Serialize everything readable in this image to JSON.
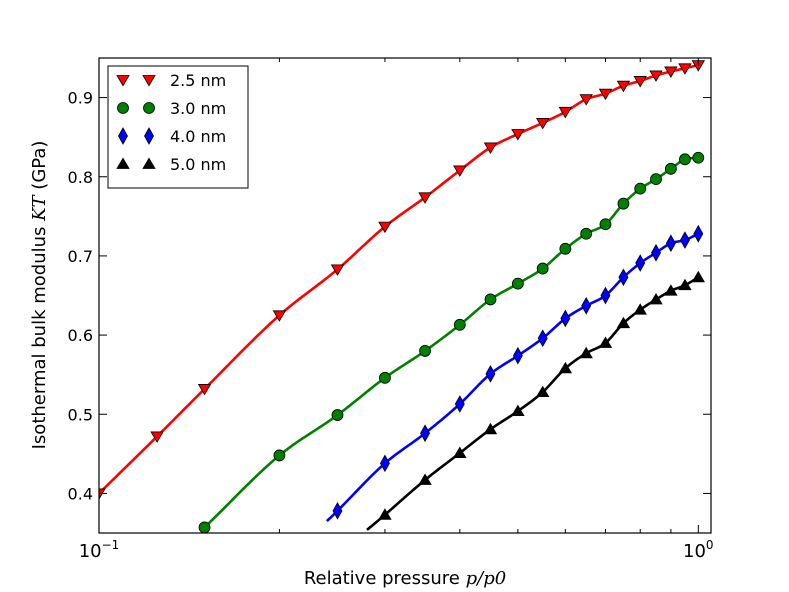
{
  "chart_data": {
    "type": "line",
    "xscale": "log",
    "xlim": [
      0.1,
      1.05
    ],
    "ylim": [
      0.35,
      0.95
    ],
    "xlabel": "Relative pressure",
    "xlabel_math": "p/p0",
    "ylabel": "Isothermal bulk modulus",
    "ylabel_math": "KT",
    "ylabel_unit": "(GPa)",
    "x_ticks": [
      {
        "base": "10",
        "exp": "−1",
        "value": 0.1
      },
      {
        "base": "10",
        "exp": "0",
        "value": 1.0
      }
    ],
    "y_ticks": [
      {
        "label": "0.4",
        "value": 0.4
      },
      {
        "label": "0.5",
        "value": 0.5
      },
      {
        "label": "0.6",
        "value": 0.6
      },
      {
        "label": "0.7",
        "value": 0.7
      },
      {
        "label": "0.8",
        "value": 0.8
      },
      {
        "label": "0.9",
        "value": 0.9
      }
    ],
    "legend_position": "top-left",
    "series": [
      {
        "name": "2.5 nm",
        "color": "#ff0000",
        "marker": "triangle-down",
        "points": [
          [
            0.1,
            0.4
          ],
          [
            0.125,
            0.472
          ],
          [
            0.15,
            0.532
          ],
          [
            0.2,
            0.625
          ],
          [
            0.25,
            0.683
          ],
          [
            0.3,
            0.737
          ],
          [
            0.35,
            0.774
          ],
          [
            0.4,
            0.808
          ],
          [
            0.45,
            0.837
          ],
          [
            0.5,
            0.854
          ],
          [
            0.55,
            0.868
          ],
          [
            0.6,
            0.882
          ],
          [
            0.65,
            0.898
          ],
          [
            0.7,
            0.905
          ],
          [
            0.75,
            0.915
          ],
          [
            0.8,
            0.921
          ],
          [
            0.85,
            0.928
          ],
          [
            0.9,
            0.933
          ],
          [
            0.95,
            0.937
          ],
          [
            1.0,
            0.941
          ]
        ]
      },
      {
        "name": "3.0 nm",
        "color": "#008000",
        "marker": "circle",
        "points": [
          [
            0.15,
            0.357
          ],
          [
            0.2,
            0.448
          ],
          [
            0.25,
            0.499
          ],
          [
            0.3,
            0.546
          ],
          [
            0.35,
            0.58
          ],
          [
            0.4,
            0.613
          ],
          [
            0.45,
            0.645
          ],
          [
            0.5,
            0.665
          ],
          [
            0.55,
            0.684
          ],
          [
            0.6,
            0.709
          ],
          [
            0.65,
            0.728
          ],
          [
            0.7,
            0.74
          ],
          [
            0.75,
            0.766
          ],
          [
            0.8,
            0.785
          ],
          [
            0.85,
            0.797
          ],
          [
            0.9,
            0.81
          ],
          [
            0.95,
            0.822
          ],
          [
            1.0,
            0.824
          ]
        ]
      },
      {
        "name": "4.0 nm",
        "color": "#0000ff",
        "marker": "diamond",
        "points": [
          [
            0.25,
            0.378
          ],
          [
            0.3,
            0.438
          ],
          [
            0.35,
            0.476
          ],
          [
            0.4,
            0.513
          ],
          [
            0.45,
            0.551
          ],
          [
            0.5,
            0.574
          ],
          [
            0.55,
            0.596
          ],
          [
            0.6,
            0.621
          ],
          [
            0.65,
            0.637
          ],
          [
            0.7,
            0.65
          ],
          [
            0.75,
            0.673
          ],
          [
            0.8,
            0.691
          ],
          [
            0.85,
            0.704
          ],
          [
            0.9,
            0.716
          ],
          [
            0.95,
            0.72
          ],
          [
            1.0,
            0.728
          ]
        ]
      },
      {
        "name": "5.0 nm",
        "color": "#000000",
        "marker": "triangle-up",
        "points": [
          [
            0.3,
            0.373
          ],
          [
            0.35,
            0.417
          ],
          [
            0.4,
            0.451
          ],
          [
            0.45,
            0.481
          ],
          [
            0.5,
            0.504
          ],
          [
            0.55,
            0.528
          ],
          [
            0.6,
            0.558
          ],
          [
            0.65,
            0.577
          ],
          [
            0.7,
            0.59
          ],
          [
            0.75,
            0.615
          ],
          [
            0.8,
            0.632
          ],
          [
            0.85,
            0.645
          ],
          [
            0.9,
            0.656
          ],
          [
            0.95,
            0.663
          ],
          [
            1.0,
            0.673
          ]
        ]
      }
    ],
    "curve_start_x": {
      "2.5 nm": 0.1,
      "3.0 nm": 0.15,
      "4.0 nm": 0.24,
      "5.0 nm": 0.28
    }
  }
}
